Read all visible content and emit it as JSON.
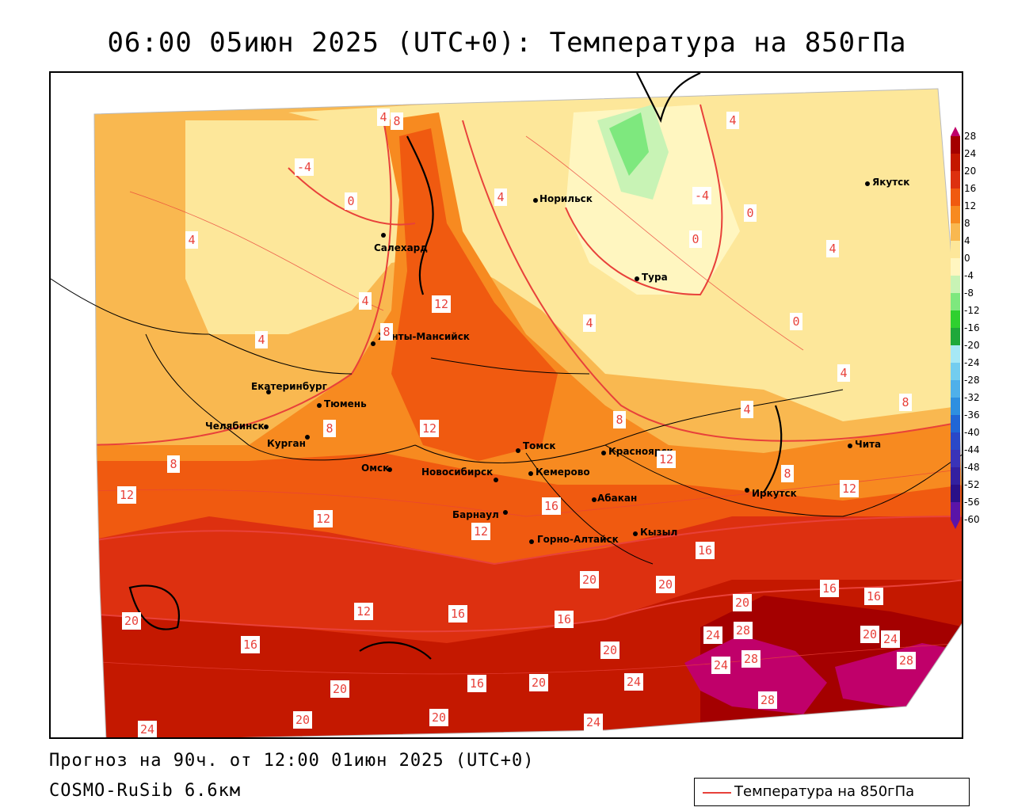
{
  "title": "06:00 05июн 2025 (UTC+0): Температура на 850гПа",
  "footer": {
    "forecast": "Прогноз на 90ч. от 12:00 01июн 2025 (UTC+0)",
    "model": "COSMO-RuSib 6.6км"
  },
  "legend": {
    "label": "Температура на 850гПа",
    "line_color": "#e8413a"
  },
  "color_scale": {
    "ticks": [
      "28",
      "24",
      "20",
      "16",
      "12",
      "8",
      "4",
      "0",
      "-4",
      "-8",
      "-12",
      "-16",
      "-20",
      "-24",
      "-28",
      "-32",
      "-36",
      "-40",
      "-44",
      "-48",
      "-52",
      "-56",
      "-60"
    ],
    "colors": [
      "#c0006a",
      "#a40000",
      "#c41800",
      "#dd3010",
      "#f05a10",
      "#f78a20",
      "#f9b850",
      "#fde79a",
      "#fff6c0",
      "#c8f3b5",
      "#7ee87e",
      "#2fd02f",
      "#1fa83a",
      "#a6e8f5",
      "#73cdef",
      "#4fb0ea",
      "#2e8fe0",
      "#2166d6",
      "#2a48c8",
      "#3a33b8",
      "#3320a0",
      "#2a1088",
      "#5a14a8"
    ]
  },
  "cities": [
    {
      "name": "Салехард"
    },
    {
      "name": "Норильск"
    },
    {
      "name": "Якутск"
    },
    {
      "name": "Тура"
    },
    {
      "name": "Ханты-Мансийск"
    },
    {
      "name": "Екатеринбург"
    },
    {
      "name": "Тюмень"
    },
    {
      "name": "Челябинск"
    },
    {
      "name": "Курган"
    },
    {
      "name": "Омск"
    },
    {
      "name": "Новосибирск"
    },
    {
      "name": "Томск"
    },
    {
      "name": "Кемерово"
    },
    {
      "name": "Красноярск"
    },
    {
      "name": "Барнаул"
    },
    {
      "name": "Абакан"
    },
    {
      "name": "Горно-Алтайск"
    },
    {
      "name": "Кызыл"
    },
    {
      "name": "Иркутск"
    },
    {
      "name": "Чита"
    }
  ],
  "isotherm_labels": [
    "-4",
    "0",
    "4",
    "8",
    "12",
    "16",
    "20",
    "24",
    "28"
  ]
}
